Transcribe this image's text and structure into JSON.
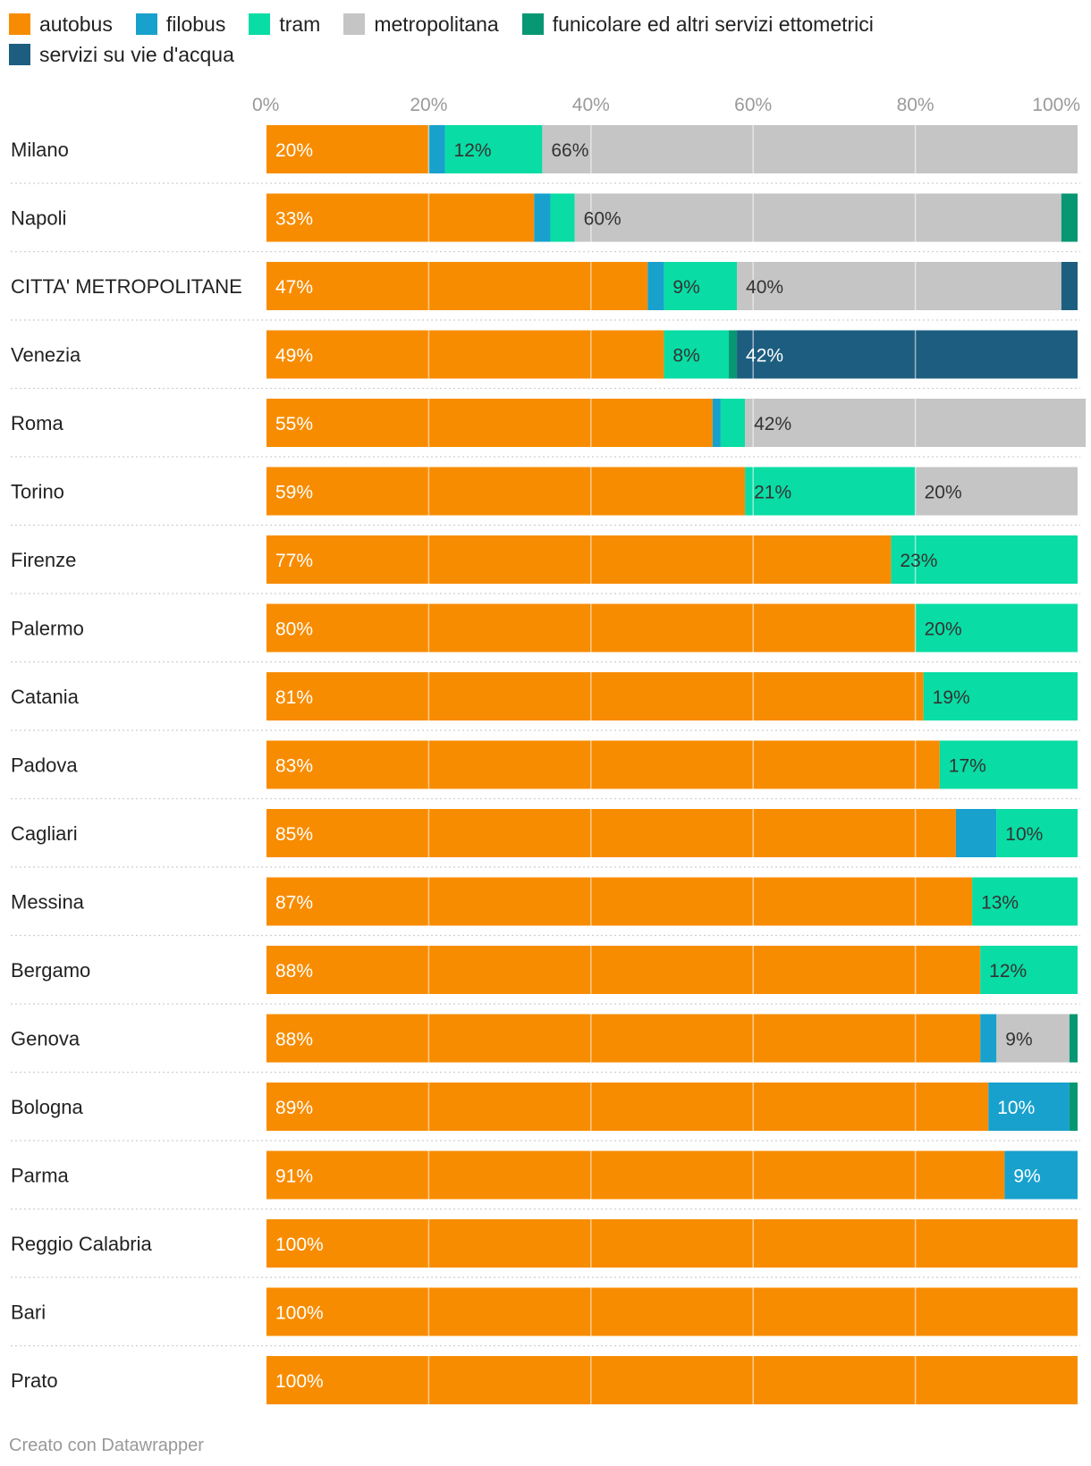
{
  "chart_data": {
    "type": "bar",
    "orientation": "horizontal",
    "stacked": true,
    "legend": [
      {
        "name": "autobus",
        "color": "#f88c00"
      },
      {
        "name": "filobus",
        "color": "#18a1cd"
      },
      {
        "name": "tram",
        "color": "#09dca4"
      },
      {
        "name": "metropolitana",
        "color": "#c5c5c5"
      },
      {
        "name": "funicolare ed altri servizi ettometrici",
        "color": "#079772"
      },
      {
        "name": "servizi su vie d'acqua",
        "color": "#1d5e80"
      }
    ],
    "xticks": [
      "0%",
      "20%",
      "40%",
      "60%",
      "80%",
      "100%"
    ],
    "xlim": [
      0,
      100
    ],
    "categories": [
      "Milano",
      "Napoli",
      "CITTA' METROPOLITANE",
      "Venezia",
      "Roma",
      "Torino",
      "Firenze",
      "Palermo",
      "Catania",
      "Padova",
      "Cagliari",
      "Messina",
      "Bergamo",
      "Genova",
      "Bologna",
      "Parma",
      "Reggio Calabria",
      "Bari",
      "Prato"
    ],
    "series": [
      {
        "name": "autobus",
        "values": [
          20,
          33,
          47,
          49,
          55,
          59,
          77,
          80,
          81,
          83,
          85,
          87,
          88,
          88,
          89,
          91,
          100,
          100,
          100
        ]
      },
      {
        "name": "filobus",
        "values": [
          2,
          2,
          2,
          0,
          1,
          0,
          0,
          0,
          0,
          0,
          5,
          0,
          0,
          2,
          10,
          9,
          0,
          0,
          0
        ]
      },
      {
        "name": "tram",
        "values": [
          12,
          3,
          9,
          8,
          3,
          21,
          23,
          20,
          19,
          17,
          10,
          13,
          12,
          0,
          0,
          0,
          0,
          0,
          0
        ]
      },
      {
        "name": "metropolitana",
        "values": [
          66,
          60,
          40,
          0,
          42,
          20,
          0,
          0,
          0,
          0,
          0,
          0,
          0,
          9,
          0,
          0,
          0,
          0,
          0
        ]
      },
      {
        "name": "funicolare ed altri servizi ettometrici",
        "values": [
          0,
          2,
          0,
          1,
          0,
          0,
          0,
          0,
          0,
          0,
          0,
          0,
          0,
          1,
          1,
          0,
          0,
          0,
          0
        ]
      },
      {
        "name": "servizi su vie d'acqua",
        "values": [
          0,
          0,
          2,
          42,
          0,
          0,
          0,
          0,
          0,
          0,
          0,
          0,
          0,
          0,
          0,
          0,
          0,
          0,
          0
        ]
      }
    ],
    "data_labels": [
      [
        {
          "series": "autobus",
          "text": "20%"
        },
        {
          "series": "tram",
          "text": "12%"
        },
        {
          "series": "metropolitana",
          "text": "66%"
        }
      ],
      [
        {
          "series": "autobus",
          "text": "33%"
        },
        {
          "series": "metropolitana",
          "text": "60%"
        }
      ],
      [
        {
          "series": "autobus",
          "text": "47%"
        },
        {
          "series": "tram",
          "text": "9%"
        },
        {
          "series": "metropolitana",
          "text": "40%"
        }
      ],
      [
        {
          "series": "autobus",
          "text": "49%"
        },
        {
          "series": "tram",
          "text": "8%"
        },
        {
          "series": "servizi su vie d'acqua",
          "text": "42%"
        }
      ],
      [
        {
          "series": "autobus",
          "text": "55%"
        },
        {
          "series": "metropolitana",
          "text": "42%"
        }
      ],
      [
        {
          "series": "autobus",
          "text": "59%"
        },
        {
          "series": "tram",
          "text": "21%"
        },
        {
          "series": "metropolitana",
          "text": "20%"
        }
      ],
      [
        {
          "series": "autobus",
          "text": "77%"
        },
        {
          "series": "tram",
          "text": "23%"
        }
      ],
      [
        {
          "series": "autobus",
          "text": "80%"
        },
        {
          "series": "tram",
          "text": "20%"
        }
      ],
      [
        {
          "series": "autobus",
          "text": "81%"
        },
        {
          "series": "tram",
          "text": "19%"
        }
      ],
      [
        {
          "series": "autobus",
          "text": "83%"
        },
        {
          "series": "tram",
          "text": "17%"
        }
      ],
      [
        {
          "series": "autobus",
          "text": "85%"
        },
        {
          "series": "tram",
          "text": "10%"
        }
      ],
      [
        {
          "series": "autobus",
          "text": "87%"
        },
        {
          "series": "tram",
          "text": "13%"
        }
      ],
      [
        {
          "series": "autobus",
          "text": "88%"
        },
        {
          "series": "tram",
          "text": "12%"
        }
      ],
      [
        {
          "series": "autobus",
          "text": "88%"
        },
        {
          "series": "metropolitana",
          "text": "9%"
        }
      ],
      [
        {
          "series": "autobus",
          "text": "89%"
        },
        {
          "series": "filobus",
          "text": "10%"
        }
      ],
      [
        {
          "series": "autobus",
          "text": "91%"
        },
        {
          "series": "filobus",
          "text": "9%"
        }
      ],
      [
        {
          "series": "autobus",
          "text": "100%"
        }
      ],
      [
        {
          "series": "autobus",
          "text": "100%"
        }
      ],
      [
        {
          "series": "autobus",
          "text": "100%"
        }
      ]
    ]
  },
  "footer": {
    "credit": "Creato con Datawrapper"
  }
}
